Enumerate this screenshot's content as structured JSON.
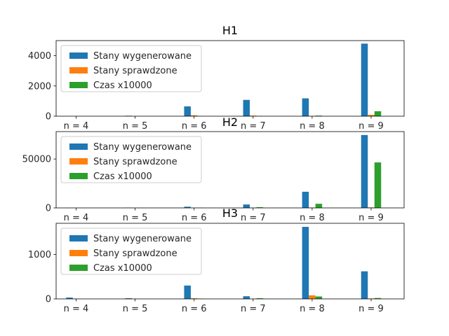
{
  "figure": {
    "colors": {
      "Stany wygenerowane": "#1f77b4",
      "Stany sprawdzone": "#ff7f0e",
      "Czas x10000": "#2ca02c"
    }
  },
  "chart_data": [
    {
      "type": "bar",
      "title": "H1",
      "xlabel": "",
      "ylabel": "",
      "categories": [
        "n = 4",
        "n = 5",
        "n = 6",
        "n = 7",
        "n = 8",
        "n = 9"
      ],
      "series": [
        {
          "name": "Stany wygenerowane",
          "values": [
            6,
            30,
            650,
            1080,
            1180,
            4800
          ]
        },
        {
          "name": "Stany sprawdzone",
          "values": [
            2,
            8,
            60,
            40,
            15,
            90
          ]
        },
        {
          "name": "Czas x10000",
          "values": [
            1,
            3,
            10,
            15,
            40,
            330
          ]
        }
      ],
      "ylim": [
        0,
        5000
      ],
      "yticks": [
        0,
        2000,
        4000
      ],
      "ytick_labels": [
        "0",
        "2000",
        "4000"
      ],
      "grid": false,
      "legend": "upper left"
    },
    {
      "type": "bar",
      "title": "H2",
      "xlabel": "",
      "ylabel": "",
      "categories": [
        "n = 4",
        "n = 5",
        "n = 6",
        "n = 7",
        "n = 8",
        "n = 9"
      ],
      "series": [
        {
          "name": "Stany wygenerowane",
          "values": [
            20,
            300,
            1200,
            3500,
            16500,
            74500
          ]
        },
        {
          "name": "Stany sprawdzone",
          "values": [
            5,
            40,
            80,
            150,
            300,
            500
          ]
        },
        {
          "name": "Czas x10000",
          "values": [
            10,
            100,
            200,
            700,
            4200,
            46500
          ]
        }
      ],
      "ylim": [
        0,
        78000
      ],
      "yticks": [
        0,
        50000
      ],
      "ytick_labels": [
        "0",
        "50000"
      ],
      "grid": false,
      "legend": "upper left"
    },
    {
      "type": "bar",
      "title": "H3",
      "xlabel": "",
      "ylabel": "",
      "categories": [
        "n = 4",
        "n = 5",
        "n = 6",
        "n = 7",
        "n = 8",
        "n = 9"
      ],
      "series": [
        {
          "name": "Stany wygenerowane",
          "values": [
            30,
            15,
            300,
            60,
            1620,
            620
          ]
        },
        {
          "name": "Stany sprawdzone",
          "values": [
            3,
            3,
            15,
            5,
            80,
            10
          ]
        },
        {
          "name": "Czas x10000",
          "values": [
            1,
            1,
            5,
            15,
            55,
            20
          ]
        }
      ],
      "ylim": [
        0,
        1700
      ],
      "yticks": [
        0,
        1000
      ],
      "ytick_labels": [
        "0",
        "1000"
      ],
      "grid": false,
      "legend": "upper left"
    }
  ]
}
